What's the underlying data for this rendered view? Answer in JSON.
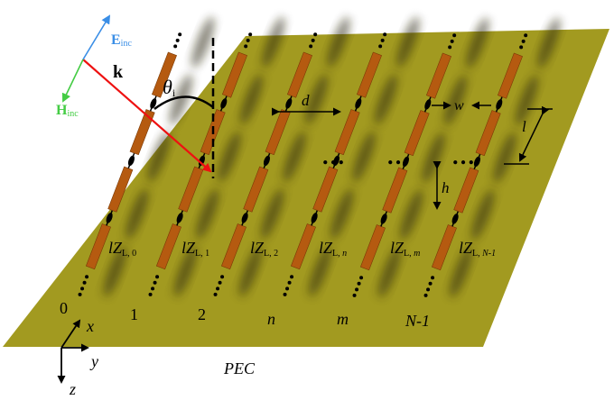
{
  "incident": {
    "e_label": "E",
    "e_sub": "inc",
    "k_label": "k",
    "h_label": "H",
    "h_sub": "inc",
    "theta_label": "θ",
    "theta_sub": "i",
    "colors": {
      "e": "#3a8ee6",
      "k": "#ee1111",
      "h": "#44cc44"
    }
  },
  "dims": {
    "d": "d",
    "w": "w",
    "l": "l",
    "h": "h"
  },
  "loads": [
    {
      "pre": "lZ",
      "sub": "L, ",
      "idx": "0"
    },
    {
      "pre": "lZ",
      "sub": "L, ",
      "idx": "1"
    },
    {
      "pre": "lZ",
      "sub": "L, ",
      "idx": "2"
    },
    {
      "pre": "lZ",
      "sub": "L, ",
      "idx": "n"
    },
    {
      "pre": "lZ",
      "sub": "L, ",
      "idx": "m"
    },
    {
      "pre": "lZ",
      "sub": "L, ",
      "idx": "N-1"
    }
  ],
  "columns": [
    "0",
    "1",
    "2",
    "n",
    "m",
    "N-1"
  ],
  "ellipsis": [
    "…",
    "…",
    "…"
  ],
  "axes": {
    "x": "x",
    "y": "y",
    "z": "z"
  },
  "ground": {
    "label": "PEC",
    "color": "#a29a20"
  },
  "strip_color": "#b55a10"
}
